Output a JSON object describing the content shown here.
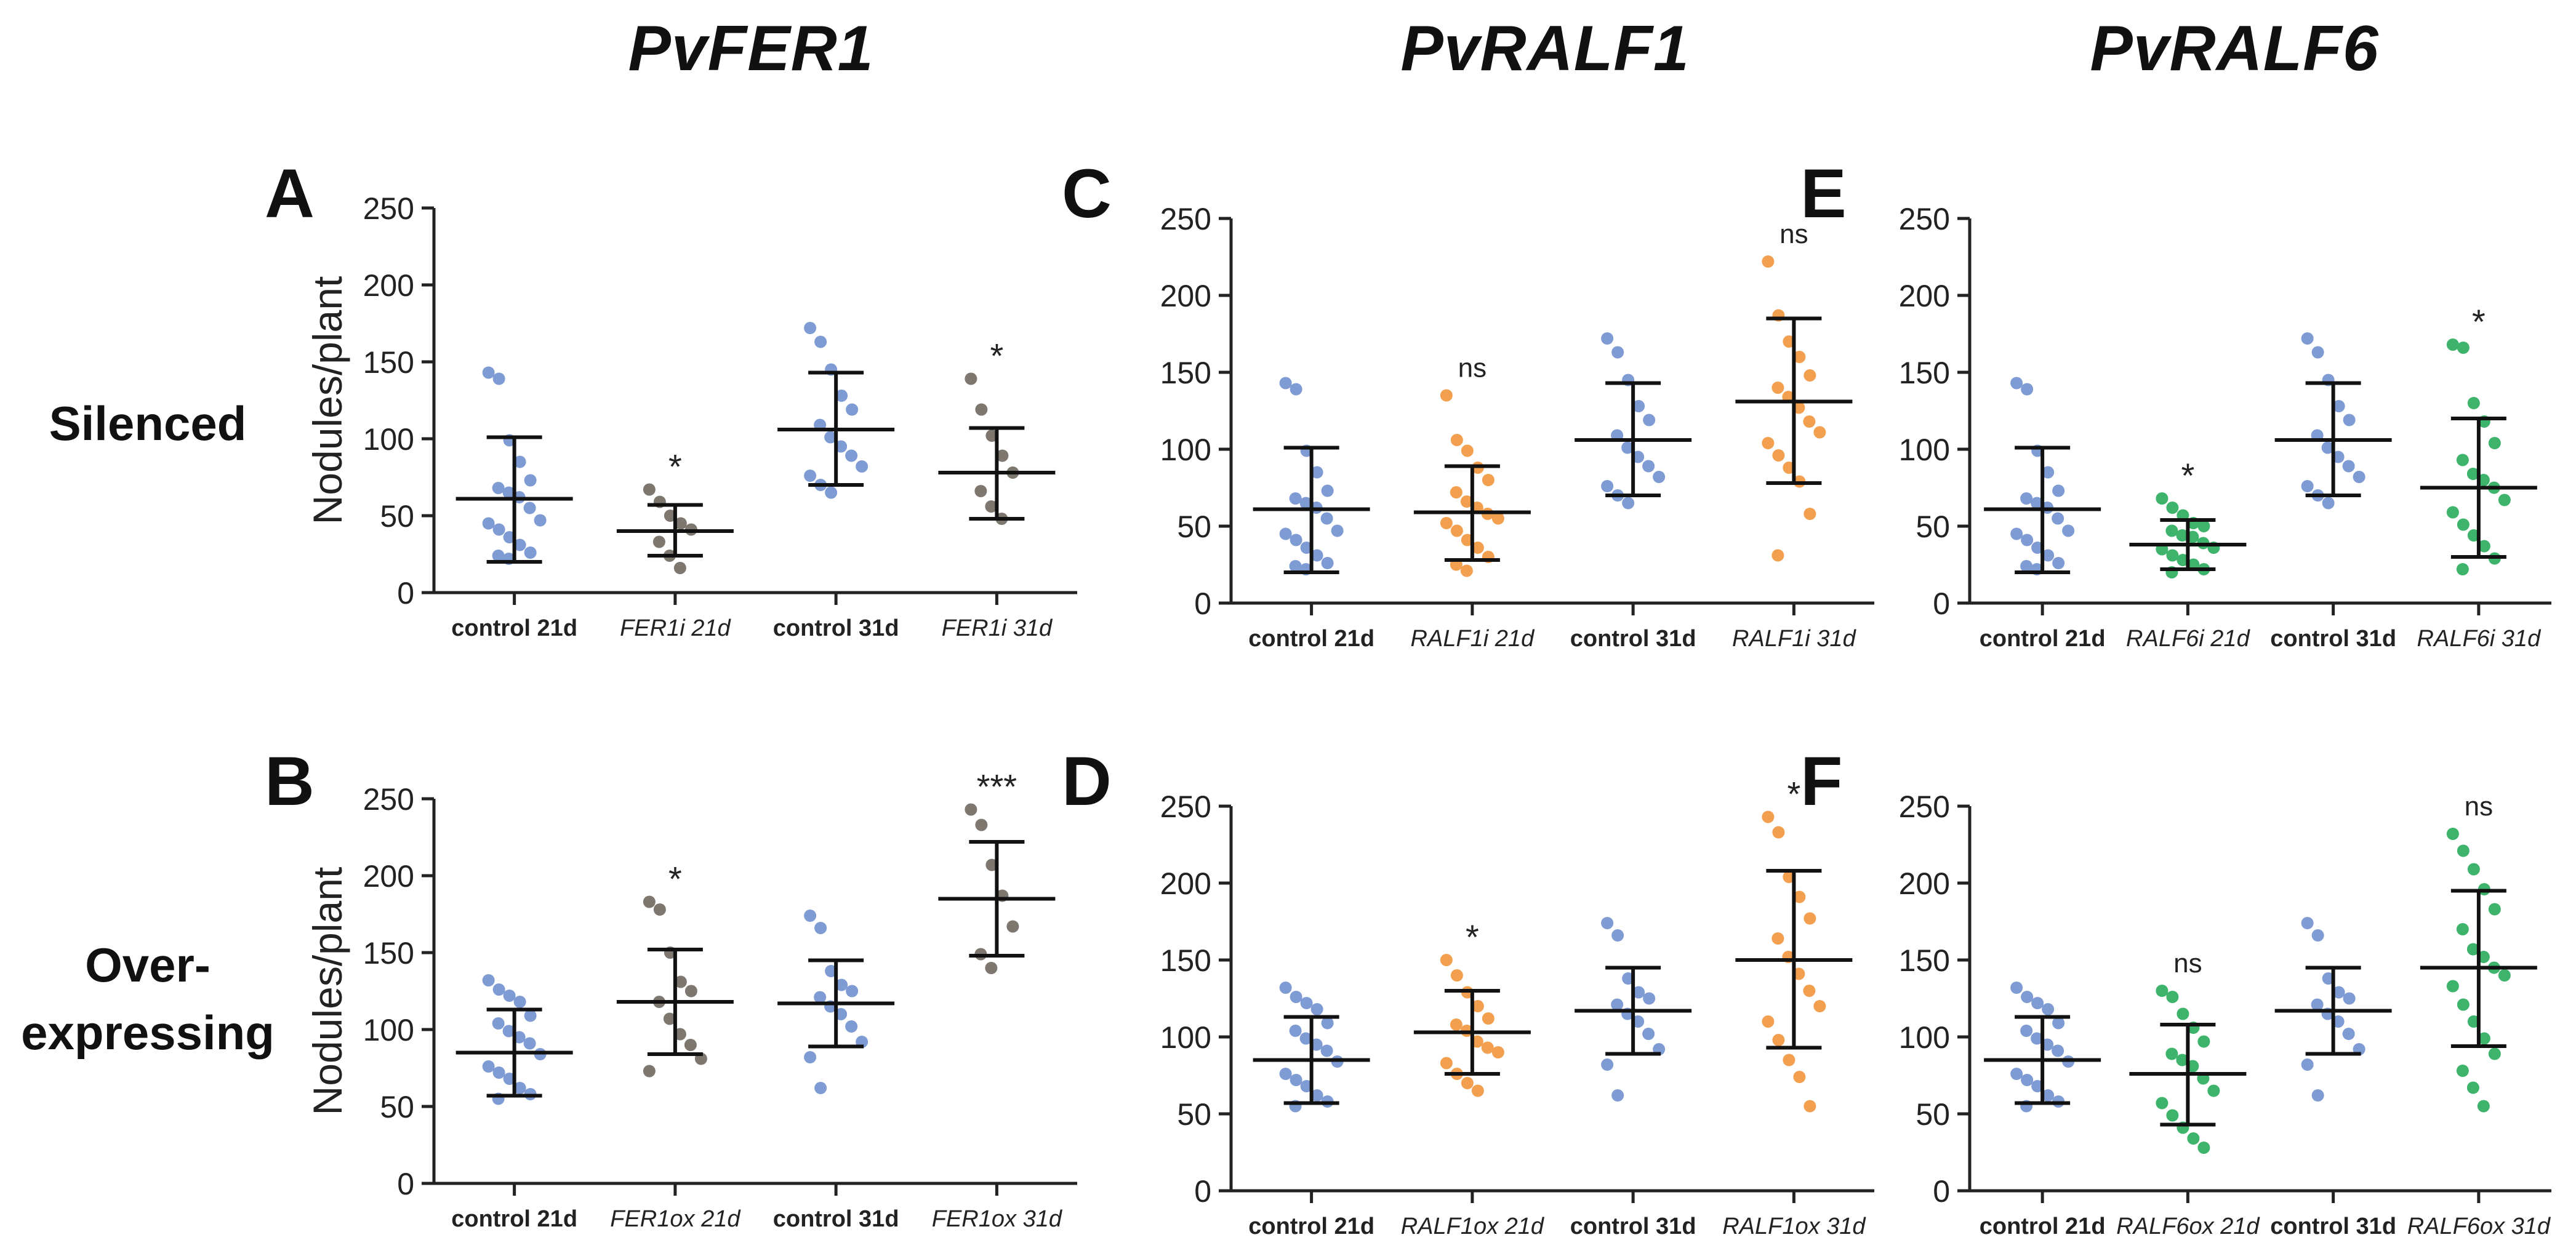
{
  "figure": {
    "gene_titles": [
      "PvFER1",
      "PvRALF1",
      "PvRALF6"
    ],
    "row_labels": {
      "silenced": "Silenced",
      "overexpressing_line1": "Over-",
      "overexpressing_line2": "expressing"
    }
  },
  "colors": {
    "control": "#7F9BD3",
    "fer1": "#7E7770",
    "ralf1": "#F2A04F",
    "ralf6": "#3DB36B",
    "axis": "#222222"
  },
  "chart_data": [
    {
      "id": "A",
      "letter": "A",
      "type": "scatter",
      "title": "",
      "ylabel": "Nodules/plant",
      "xlabel": "",
      "ylim": [
        0,
        250
      ],
      "yticks": [
        0,
        50,
        100,
        150,
        200,
        250
      ],
      "categories": [
        {
          "label": "control 21d",
          "italic": false,
          "color": "control",
          "mean": 61,
          "sd_low": 20,
          "sd_high": 101,
          "sig": "",
          "values": [
            143,
            139,
            99,
            85,
            73,
            65,
            55,
            47,
            41,
            36,
            31,
            26,
            24,
            22,
            45,
            62,
            68
          ]
        },
        {
          "label": "FER1i 21d",
          "italic": true,
          "color": "fer1",
          "mean": 40,
          "sd_low": 24,
          "sd_high": 57,
          "sig": "*",
          "values": [
            67,
            59,
            50,
            41,
            33,
            24,
            16,
            45
          ]
        },
        {
          "label": "control 31d",
          "italic": false,
          "color": "control",
          "mean": 106,
          "sd_low": 70,
          "sd_high": 143,
          "sig": "",
          "values": [
            172,
            163,
            145,
            128,
            119,
            109,
            101,
            95,
            89,
            82,
            76,
            70,
            65
          ]
        },
        {
          "label": "FER1i 31d",
          "italic": true,
          "color": "fer1",
          "mean": 78,
          "sd_low": 48,
          "sd_high": 107,
          "sig": "*",
          "values": [
            139,
            119,
            102,
            89,
            78,
            66,
            56,
            48
          ]
        }
      ]
    },
    {
      "id": "B",
      "letter": "B",
      "type": "scatter",
      "title": "",
      "ylabel": "Nodules/plant",
      "xlabel": "",
      "ylim": [
        0,
        250
      ],
      "yticks": [
        0,
        50,
        100,
        150,
        200,
        250
      ],
      "categories": [
        {
          "label": "control 21d",
          "italic": false,
          "color": "control",
          "mean": 85,
          "sd_low": 57,
          "sd_high": 113,
          "sig": "",
          "values": [
            132,
            126,
            118,
            109,
            99,
            91,
            84,
            76,
            68,
            62,
            58,
            55,
            72,
            95,
            104,
            122
          ]
        },
        {
          "label": "FER1ox 21d",
          "italic": true,
          "color": "fer1",
          "mean": 118,
          "sd_low": 84,
          "sd_high": 152,
          "sig": "*",
          "values": [
            183,
            178,
            150,
            131,
            118,
            107,
            97,
            90,
            81,
            73,
            125
          ]
        },
        {
          "label": "control 31d",
          "italic": false,
          "color": "control",
          "mean": 117,
          "sd_low": 89,
          "sd_high": 145,
          "sig": "",
          "values": [
            174,
            166,
            138,
            129,
            121,
            115,
            110,
            102,
            92,
            82,
            62,
            125
          ]
        },
        {
          "label": "FER1ox 31d",
          "italic": true,
          "color": "fer1",
          "mean": 185,
          "sd_low": 148,
          "sd_high": 222,
          "sig": "***",
          "values": [
            243,
            233,
            207,
            187,
            167,
            149,
            140
          ]
        }
      ]
    },
    {
      "id": "C",
      "letter": "C",
      "type": "scatter",
      "title": "",
      "ylabel": "",
      "xlabel": "",
      "ylim": [
        0,
        250
      ],
      "yticks": [
        0,
        50,
        100,
        150,
        200,
        250
      ],
      "categories": [
        {
          "label": "control 21d",
          "italic": false,
          "color": "control",
          "mean": 61,
          "sd_low": 20,
          "sd_high": 101,
          "sig": "",
          "values": [
            143,
            139,
            99,
            85,
            73,
            65,
            55,
            47,
            41,
            36,
            31,
            26,
            24,
            22,
            45,
            62,
            68
          ]
        },
        {
          "label": "RALF1i 21d",
          "italic": true,
          "color": "ralf1",
          "mean": 59,
          "sd_low": 28,
          "sd_high": 89,
          "sig": "ns",
          "values": [
            135,
            106,
            99,
            88,
            80,
            72,
            66,
            58,
            52,
            47,
            41,
            36,
            30,
            25,
            21,
            62,
            55
          ]
        },
        {
          "label": "control 31d",
          "italic": false,
          "color": "control",
          "mean": 106,
          "sd_low": 70,
          "sd_high": 143,
          "sig": "",
          "values": [
            172,
            163,
            145,
            128,
            119,
            109,
            101,
            95,
            89,
            82,
            76,
            70,
            65
          ]
        },
        {
          "label": "RALF1i 31d",
          "italic": true,
          "color": "ralf1",
          "mean": 131,
          "sd_low": 78,
          "sd_high": 185,
          "sig": "ns",
          "values": [
            222,
            187,
            170,
            160,
            148,
            140,
            134,
            127,
            118,
            111,
            104,
            96,
            88,
            79,
            58,
            31
          ]
        }
      ]
    },
    {
      "id": "D",
      "letter": "D",
      "type": "scatter",
      "title": "",
      "ylabel": "",
      "xlabel": "",
      "ylim": [
        0,
        250
      ],
      "yticks": [
        0,
        50,
        100,
        150,
        200,
        250
      ],
      "categories": [
        {
          "label": "control 21d",
          "italic": false,
          "color": "control",
          "mean": 85,
          "sd_low": 57,
          "sd_high": 113,
          "sig": "",
          "values": [
            132,
            126,
            118,
            109,
            99,
            91,
            84,
            76,
            68,
            62,
            58,
            55,
            72,
            95,
            104,
            122
          ]
        },
        {
          "label": "RALF1ox 21d",
          "italic": true,
          "color": "ralf1",
          "mean": 103,
          "sd_low": 76,
          "sd_high": 130,
          "sig": "*",
          "values": [
            150,
            140,
            129,
            120,
            112,
            104,
            97,
            90,
            83,
            76,
            70,
            65,
            108,
            93
          ]
        },
        {
          "label": "control 31d",
          "italic": false,
          "color": "control",
          "mean": 117,
          "sd_low": 89,
          "sd_high": 145,
          "sig": "",
          "values": [
            174,
            166,
            138,
            129,
            121,
            115,
            110,
            102,
            92,
            82,
            62,
            125
          ]
        },
        {
          "label": "RALF1ox 31d",
          "italic": true,
          "color": "ralf1",
          "mean": 150,
          "sd_low": 93,
          "sd_high": 208,
          "sig": "*",
          "values": [
            243,
            233,
            204,
            191,
            177,
            164,
            152,
            141,
            130,
            120,
            110,
            98,
            85,
            74,
            55
          ]
        }
      ]
    },
    {
      "id": "E",
      "letter": "E",
      "type": "scatter",
      "title": "",
      "ylabel": "",
      "xlabel": "",
      "ylim": [
        0,
        250
      ],
      "yticks": [
        0,
        50,
        100,
        150,
        200,
        250
      ],
      "categories": [
        {
          "label": "control 21d",
          "italic": false,
          "color": "control",
          "mean": 61,
          "sd_low": 20,
          "sd_high": 101,
          "sig": "",
          "values": [
            143,
            139,
            99,
            85,
            73,
            65,
            55,
            47,
            41,
            36,
            31,
            26,
            24,
            22,
            45,
            62,
            68
          ]
        },
        {
          "label": "RALF6i 21d",
          "italic": true,
          "color": "ralf6",
          "mean": 38,
          "sd_low": 22,
          "sd_high": 54,
          "sig": "*",
          "values": [
            68,
            62,
            57,
            52,
            47,
            43,
            39,
            35,
            31,
            28,
            25,
            22,
            20,
            44,
            36,
            50
          ]
        },
        {
          "label": "control 31d",
          "italic": false,
          "color": "control",
          "mean": 106,
          "sd_low": 70,
          "sd_high": 143,
          "sig": "",
          "values": [
            172,
            163,
            145,
            128,
            119,
            109,
            101,
            95,
            89,
            82,
            76,
            70,
            65
          ]
        },
        {
          "label": "RALF6i 31d",
          "italic": true,
          "color": "ralf6",
          "mean": 75,
          "sd_low": 30,
          "sd_high": 120,
          "sig": "*",
          "values": [
            168,
            166,
            130,
            118,
            104,
            93,
            84,
            75,
            67,
            59,
            51,
            44,
            37,
            29,
            22,
            80
          ]
        }
      ]
    },
    {
      "id": "F",
      "letter": "F",
      "type": "scatter",
      "title": "",
      "ylabel": "",
      "xlabel": "",
      "ylim": [
        0,
        250
      ],
      "yticks": [
        0,
        50,
        100,
        150,
        200,
        250
      ],
      "categories": [
        {
          "label": "control 21d",
          "italic": false,
          "color": "control",
          "mean": 85,
          "sd_low": 57,
          "sd_high": 113,
          "sig": "",
          "values": [
            132,
            126,
            118,
            109,
            99,
            91,
            84,
            76,
            68,
            62,
            58,
            55,
            72,
            95,
            104,
            122
          ]
        },
        {
          "label": "RALF6ox 21d",
          "italic": true,
          "color": "ralf6",
          "mean": 76,
          "sd_low": 43,
          "sd_high": 108,
          "sig": "ns",
          "values": [
            130,
            126,
            115,
            106,
            97,
            89,
            81,
            73,
            65,
            57,
            49,
            41,
            34,
            28,
            85
          ]
        },
        {
          "label": "control 31d",
          "italic": false,
          "color": "control",
          "mean": 117,
          "sd_low": 89,
          "sd_high": 145,
          "sig": "",
          "values": [
            174,
            166,
            138,
            129,
            121,
            115,
            110,
            102,
            92,
            82,
            62,
            125
          ]
        },
        {
          "label": "RALF6ox 31d",
          "italic": true,
          "color": "ralf6",
          "mean": 145,
          "sd_low": 94,
          "sd_high": 195,
          "sig": "ns",
          "values": [
            232,
            221,
            209,
            196,
            183,
            170,
            157,
            145,
            133,
            121,
            110,
            99,
            89,
            78,
            67,
            55,
            140,
            152
          ]
        }
      ]
    }
  ]
}
